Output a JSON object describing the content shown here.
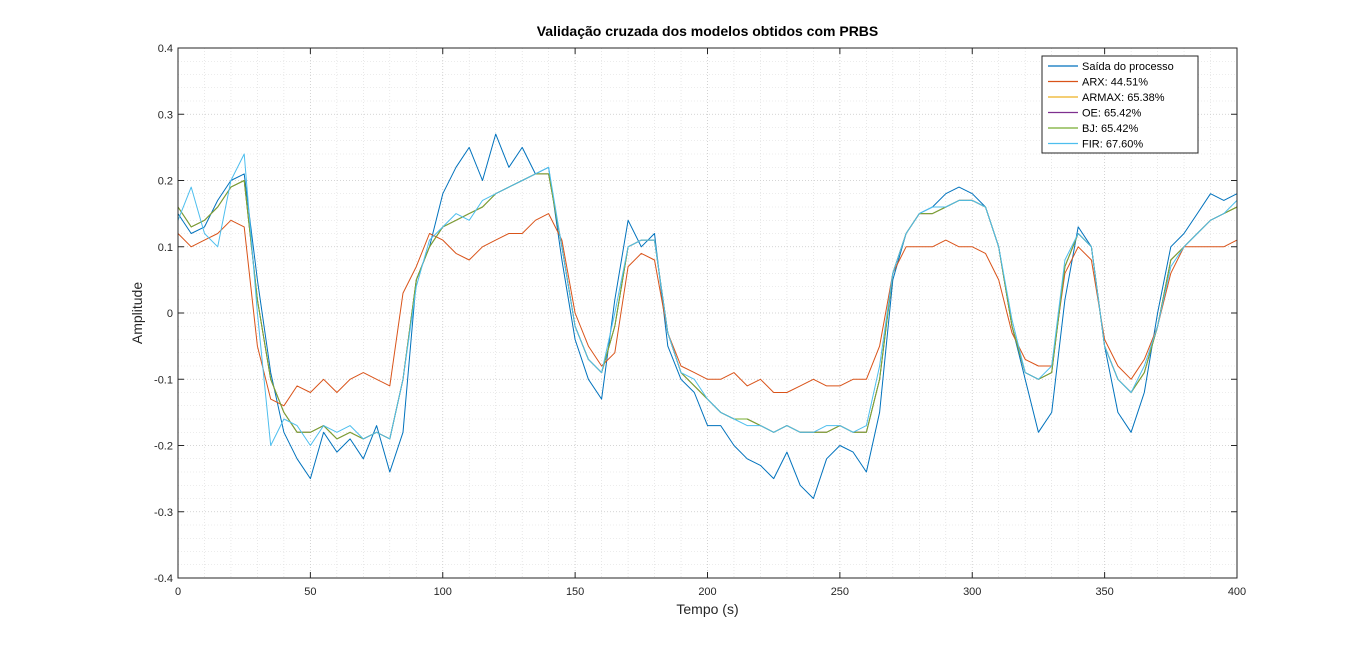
{
  "chart_data": {
    "type": "line",
    "title": "Validação cruzada dos modelos obtidos com PRBS",
    "xlabel": "Tempo (s)",
    "ylabel": "Amplitude",
    "xlim": [
      0,
      400
    ],
    "ylim": [
      -0.4,
      0.4
    ],
    "x_ticks": [
      "0",
      "50",
      "100",
      "150",
      "200",
      "250",
      "300",
      "350",
      "400"
    ],
    "y_ticks": [
      "-0.4",
      "-0.3",
      "-0.2",
      "-0.1",
      "0",
      "0.1",
      "0.2",
      "0.3",
      "0.4"
    ],
    "grid": true,
    "minor_grid": true,
    "legend_position": "top-right",
    "series": [
      {
        "name": "Saída do processo",
        "color": "#0072BD",
        "x": [
          0,
          5,
          10,
          15,
          20,
          25,
          30,
          35,
          40,
          45,
          50,
          55,
          60,
          65,
          70,
          75,
          80,
          85,
          90,
          95,
          100,
          105,
          110,
          115,
          120,
          125,
          130,
          135,
          140,
          145,
          150,
          155,
          160,
          165,
          170,
          175,
          180,
          185,
          190,
          195,
          200,
          205,
          210,
          215,
          220,
          225,
          230,
          235,
          240,
          245,
          250,
          255,
          260,
          265,
          270,
          275,
          280,
          285,
          290,
          295,
          300,
          305,
          310,
          315,
          320,
          325,
          330,
          335,
          340,
          345,
          350,
          355,
          360,
          365,
          370,
          375,
          380,
          385,
          390,
          395,
          400
        ],
        "y": [
          0.15,
          0.12,
          0.13,
          0.17,
          0.2,
          0.21,
          0.05,
          -0.09,
          -0.18,
          -0.22,
          -0.25,
          -0.18,
          -0.21,
          -0.19,
          -0.22,
          -0.17,
          -0.24,
          -0.18,
          0.05,
          0.1,
          0.18,
          0.22,
          0.25,
          0.2,
          0.27,
          0.22,
          0.25,
          0.21,
          0.22,
          0.08,
          -0.04,
          -0.1,
          -0.13,
          0.02,
          0.14,
          0.1,
          0.12,
          -0.05,
          -0.1,
          -0.12,
          -0.17,
          -0.17,
          -0.2,
          -0.22,
          -0.23,
          -0.25,
          -0.21,
          -0.26,
          -0.28,
          -0.22,
          -0.2,
          -0.21,
          -0.24,
          -0.15,
          0.05,
          0.12,
          0.15,
          0.16,
          0.18,
          0.19,
          0.18,
          0.16,
          0.1,
          -0.02,
          -0.1,
          -0.18,
          -0.15,
          0.02,
          0.13,
          0.1,
          -0.05,
          -0.15,
          -0.18,
          -0.12,
          0.0,
          0.1,
          0.12,
          0.15,
          0.18,
          0.17,
          0.18
        ]
      },
      {
        "name": "ARX: 44.51%",
        "color": "#D95319",
        "x": [
          0,
          5,
          10,
          15,
          20,
          25,
          30,
          35,
          40,
          45,
          50,
          55,
          60,
          65,
          70,
          75,
          80,
          85,
          90,
          95,
          100,
          105,
          110,
          115,
          120,
          125,
          130,
          135,
          140,
          145,
          150,
          155,
          160,
          165,
          170,
          175,
          180,
          185,
          190,
          195,
          200,
          205,
          210,
          215,
          220,
          225,
          230,
          235,
          240,
          245,
          250,
          255,
          260,
          265,
          270,
          275,
          280,
          285,
          290,
          295,
          300,
          305,
          310,
          315,
          320,
          325,
          330,
          335,
          340,
          345,
          350,
          355,
          360,
          365,
          370,
          375,
          380,
          385,
          390,
          395,
          400
        ],
        "y": [
          0.12,
          0.1,
          0.11,
          0.12,
          0.14,
          0.13,
          -0.05,
          -0.13,
          -0.14,
          -0.11,
          -0.12,
          -0.1,
          -0.12,
          -0.1,
          -0.09,
          -0.1,
          -0.11,
          0.03,
          0.07,
          0.12,
          0.11,
          0.09,
          0.08,
          0.1,
          0.11,
          0.12,
          0.12,
          0.14,
          0.15,
          0.11,
          0.0,
          -0.05,
          -0.08,
          -0.06,
          0.07,
          0.09,
          0.08,
          -0.03,
          -0.08,
          -0.09,
          -0.1,
          -0.1,
          -0.09,
          -0.11,
          -0.1,
          -0.12,
          -0.12,
          -0.11,
          -0.1,
          -0.11,
          -0.11,
          -0.1,
          -0.1,
          -0.05,
          0.06,
          0.1,
          0.1,
          0.1,
          0.11,
          0.1,
          0.1,
          0.09,
          0.05,
          -0.03,
          -0.07,
          -0.08,
          -0.08,
          0.06,
          0.1,
          0.08,
          -0.04,
          -0.08,
          -0.1,
          -0.07,
          -0.02,
          0.06,
          0.1,
          0.1,
          0.1,
          0.1,
          0.11
        ]
      },
      {
        "name": "ARMAX: 65.38%",
        "color": "#EDB120",
        "x": [
          0,
          5,
          10,
          15,
          20,
          25,
          30,
          35,
          40,
          45,
          50,
          55,
          60,
          65,
          70,
          75,
          80,
          85,
          90,
          95,
          100,
          105,
          110,
          115,
          120,
          125,
          130,
          135,
          140,
          145,
          150,
          155,
          160,
          165,
          170,
          175,
          180,
          185,
          190,
          195,
          200,
          205,
          210,
          215,
          220,
          225,
          230,
          235,
          240,
          245,
          250,
          255,
          260,
          265,
          270,
          275,
          280,
          285,
          290,
          295,
          300,
          305,
          310,
          315,
          320,
          325,
          330,
          335,
          340,
          345,
          350,
          355,
          360,
          365,
          370,
          375,
          380,
          385,
          390,
          395,
          400
        ],
        "y": [
          0.16,
          0.13,
          0.14,
          0.16,
          0.19,
          0.2,
          0.02,
          -0.1,
          -0.15,
          -0.18,
          -0.18,
          -0.17,
          -0.19,
          -0.18,
          -0.19,
          -0.18,
          -0.19,
          -0.1,
          0.05,
          0.1,
          0.13,
          0.14,
          0.15,
          0.16,
          0.18,
          0.19,
          0.2,
          0.21,
          0.21,
          0.1,
          -0.02,
          -0.07,
          -0.09,
          -0.02,
          0.1,
          0.11,
          0.11,
          -0.03,
          -0.09,
          -0.11,
          -0.13,
          -0.15,
          -0.16,
          -0.16,
          -0.17,
          -0.18,
          -0.17,
          -0.18,
          -0.18,
          -0.18,
          -0.17,
          -0.18,
          -0.18,
          -0.1,
          0.06,
          0.12,
          0.15,
          0.15,
          0.16,
          0.17,
          0.17,
          0.16,
          0.1,
          -0.02,
          -0.09,
          -0.1,
          -0.09,
          0.07,
          0.12,
          0.1,
          -0.05,
          -0.1,
          -0.12,
          -0.09,
          -0.02,
          0.08,
          0.1,
          0.12,
          0.14,
          0.15,
          0.16
        ]
      },
      {
        "name": "OE: 65.42%",
        "color": "#7E2F8E",
        "x": [
          0,
          5,
          10,
          15,
          20,
          25,
          30,
          35,
          40,
          45,
          50,
          55,
          60,
          65,
          70,
          75,
          80,
          85,
          90,
          95,
          100,
          105,
          110,
          115,
          120,
          125,
          130,
          135,
          140,
          145,
          150,
          155,
          160,
          165,
          170,
          175,
          180,
          185,
          190,
          195,
          200,
          205,
          210,
          215,
          220,
          225,
          230,
          235,
          240,
          245,
          250,
          255,
          260,
          265,
          270,
          275,
          280,
          285,
          290,
          295,
          300,
          305,
          310,
          315,
          320,
          325,
          330,
          335,
          340,
          345,
          350,
          355,
          360,
          365,
          370,
          375,
          380,
          385,
          390,
          395,
          400
        ],
        "y": [
          0.16,
          0.13,
          0.14,
          0.16,
          0.19,
          0.2,
          0.02,
          -0.1,
          -0.15,
          -0.18,
          -0.18,
          -0.17,
          -0.19,
          -0.18,
          -0.19,
          -0.18,
          -0.19,
          -0.1,
          0.05,
          0.1,
          0.13,
          0.14,
          0.15,
          0.16,
          0.18,
          0.19,
          0.2,
          0.21,
          0.21,
          0.1,
          -0.02,
          -0.07,
          -0.09,
          -0.02,
          0.1,
          0.11,
          0.11,
          -0.03,
          -0.09,
          -0.11,
          -0.13,
          -0.15,
          -0.16,
          -0.16,
          -0.17,
          -0.18,
          -0.17,
          -0.18,
          -0.18,
          -0.18,
          -0.17,
          -0.18,
          -0.18,
          -0.1,
          0.06,
          0.12,
          0.15,
          0.15,
          0.16,
          0.17,
          0.17,
          0.16,
          0.1,
          -0.02,
          -0.09,
          -0.1,
          -0.09,
          0.07,
          0.12,
          0.1,
          -0.05,
          -0.1,
          -0.12,
          -0.09,
          -0.02,
          0.08,
          0.1,
          0.12,
          0.14,
          0.15,
          0.16
        ]
      },
      {
        "name": "BJ: 65.42%",
        "color": "#77AC30",
        "x": [
          0,
          5,
          10,
          15,
          20,
          25,
          30,
          35,
          40,
          45,
          50,
          55,
          60,
          65,
          70,
          75,
          80,
          85,
          90,
          95,
          100,
          105,
          110,
          115,
          120,
          125,
          130,
          135,
          140,
          145,
          150,
          155,
          160,
          165,
          170,
          175,
          180,
          185,
          190,
          195,
          200,
          205,
          210,
          215,
          220,
          225,
          230,
          235,
          240,
          245,
          250,
          255,
          260,
          265,
          270,
          275,
          280,
          285,
          290,
          295,
          300,
          305,
          310,
          315,
          320,
          325,
          330,
          335,
          340,
          345,
          350,
          355,
          360,
          365,
          370,
          375,
          380,
          385,
          390,
          395,
          400
        ],
        "y": [
          0.16,
          0.13,
          0.14,
          0.16,
          0.19,
          0.2,
          0.02,
          -0.1,
          -0.15,
          -0.18,
          -0.18,
          -0.17,
          -0.19,
          -0.18,
          -0.19,
          -0.18,
          -0.19,
          -0.1,
          0.05,
          0.1,
          0.13,
          0.14,
          0.15,
          0.16,
          0.18,
          0.19,
          0.2,
          0.21,
          0.21,
          0.1,
          -0.02,
          -0.07,
          -0.09,
          -0.02,
          0.1,
          0.11,
          0.11,
          -0.03,
          -0.09,
          -0.11,
          -0.13,
          -0.15,
          -0.16,
          -0.16,
          -0.17,
          -0.18,
          -0.17,
          -0.18,
          -0.18,
          -0.18,
          -0.17,
          -0.18,
          -0.18,
          -0.1,
          0.06,
          0.12,
          0.15,
          0.15,
          0.16,
          0.17,
          0.17,
          0.16,
          0.1,
          -0.02,
          -0.09,
          -0.1,
          -0.09,
          0.07,
          0.12,
          0.1,
          -0.05,
          -0.1,
          -0.12,
          -0.09,
          -0.02,
          0.08,
          0.1,
          0.12,
          0.14,
          0.15,
          0.16
        ]
      },
      {
        "name": "FIR: 67.60%",
        "color": "#4DBEEE",
        "x": [
          0,
          5,
          10,
          15,
          20,
          25,
          30,
          35,
          40,
          45,
          50,
          55,
          60,
          65,
          70,
          75,
          80,
          85,
          90,
          95,
          100,
          105,
          110,
          115,
          120,
          125,
          130,
          135,
          140,
          145,
          150,
          155,
          160,
          165,
          170,
          175,
          180,
          185,
          190,
          195,
          200,
          205,
          210,
          215,
          220,
          225,
          230,
          235,
          240,
          245,
          250,
          255,
          260,
          265,
          270,
          275,
          280,
          285,
          290,
          295,
          300,
          305,
          310,
          315,
          320,
          325,
          330,
          335,
          340,
          345,
          350,
          355,
          360,
          365,
          370,
          375,
          380,
          385,
          390,
          395,
          400
        ],
        "y": [
          0.14,
          0.19,
          0.12,
          0.1,
          0.2,
          0.24,
          0.0,
          -0.2,
          -0.16,
          -0.17,
          -0.2,
          -0.17,
          -0.18,
          -0.17,
          -0.19,
          -0.18,
          -0.19,
          -0.1,
          0.04,
          0.11,
          0.13,
          0.15,
          0.14,
          0.17,
          0.18,
          0.19,
          0.2,
          0.21,
          0.22,
          0.1,
          -0.02,
          -0.07,
          -0.09,
          0.0,
          0.1,
          0.11,
          0.11,
          -0.03,
          -0.09,
          -0.1,
          -0.13,
          -0.15,
          -0.16,
          -0.17,
          -0.17,
          -0.18,
          -0.17,
          -0.18,
          -0.18,
          -0.17,
          -0.17,
          -0.18,
          -0.17,
          -0.08,
          0.06,
          0.12,
          0.15,
          0.16,
          0.16,
          0.17,
          0.17,
          0.16,
          0.1,
          -0.01,
          -0.09,
          -0.1,
          -0.08,
          0.08,
          0.12,
          0.1,
          -0.05,
          -0.1,
          -0.12,
          -0.08,
          -0.02,
          0.07,
          0.1,
          0.12,
          0.14,
          0.15,
          0.17
        ]
      }
    ]
  }
}
